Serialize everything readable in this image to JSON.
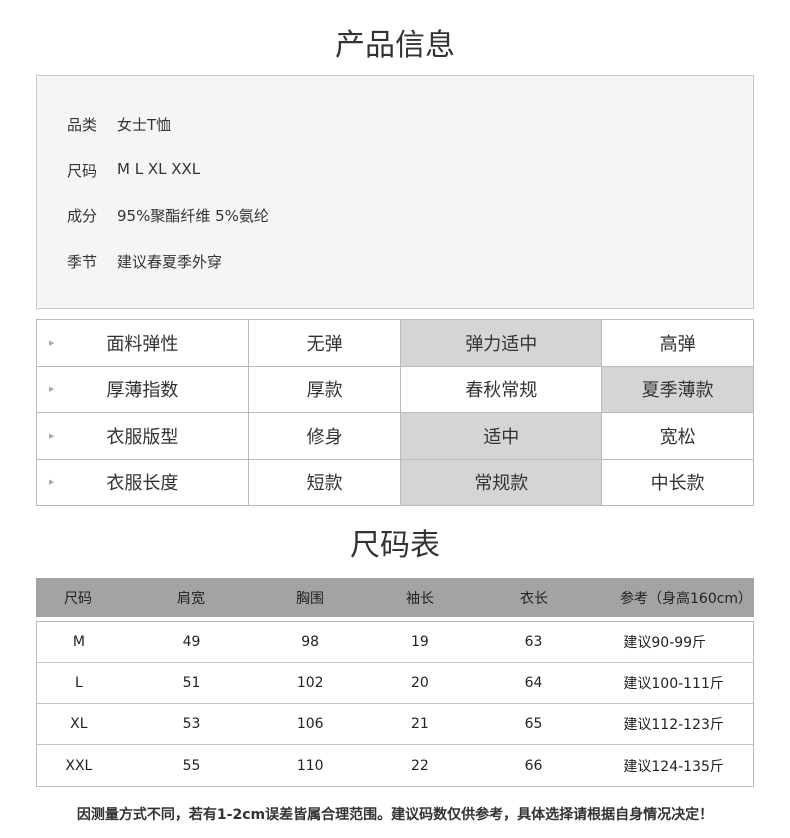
{
  "title": "产品信息",
  "info": [
    {
      "label": "品类",
      "value": "女士T恤"
    },
    {
      "label": "尺码",
      "value": "M  L  XL  XXL"
    },
    {
      "label": "成分",
      "value": "95%聚酯纤维 5%氨纶"
    },
    {
      "label": "季节",
      "value": "建议春夏季外穿"
    }
  ],
  "attributes": [
    {
      "name": "面料弹性",
      "options": [
        "无弹",
        "弹力适中",
        "高弹"
      ],
      "selected": 1
    },
    {
      "name": "厚薄指数",
      "options": [
        "厚款",
        "春秋常规",
        "夏季薄款"
      ],
      "selected": 2
    },
    {
      "name": "衣服版型",
      "options": [
        "修身",
        "适中",
        "宽松"
      ],
      "selected": 1
    },
    {
      "name": "衣服长度",
      "options": [
        "短款",
        "常规款",
        "中长款"
      ],
      "selected": 1
    }
  ],
  "size_title": "尺码表",
  "size_table": {
    "headers": [
      "尺码",
      "肩宽",
      "胸围",
      "袖长",
      "衣长",
      "参考（身高160cm）"
    ],
    "rows": [
      [
        "M",
        "49",
        "98",
        "19",
        "63",
        "建议90-99斤"
      ],
      [
        "L",
        "51",
        "102",
        "20",
        "64",
        "建议100-111斤"
      ],
      [
        "XL",
        "53",
        "106",
        "21",
        "65",
        "建议112-123斤"
      ],
      [
        "XXL",
        "55",
        "110",
        "22",
        "66",
        "建议124-135斤"
      ]
    ]
  },
  "footer": "因测量方式不同，若有1-2cm误差皆属合理范围。建议码数仅供参考，具体选择请根据自身情况决定！",
  "colors": {
    "selected": "#d5d5d5",
    "header": "#a3a3a3",
    "info_bg": "#f5f5f5"
  }
}
